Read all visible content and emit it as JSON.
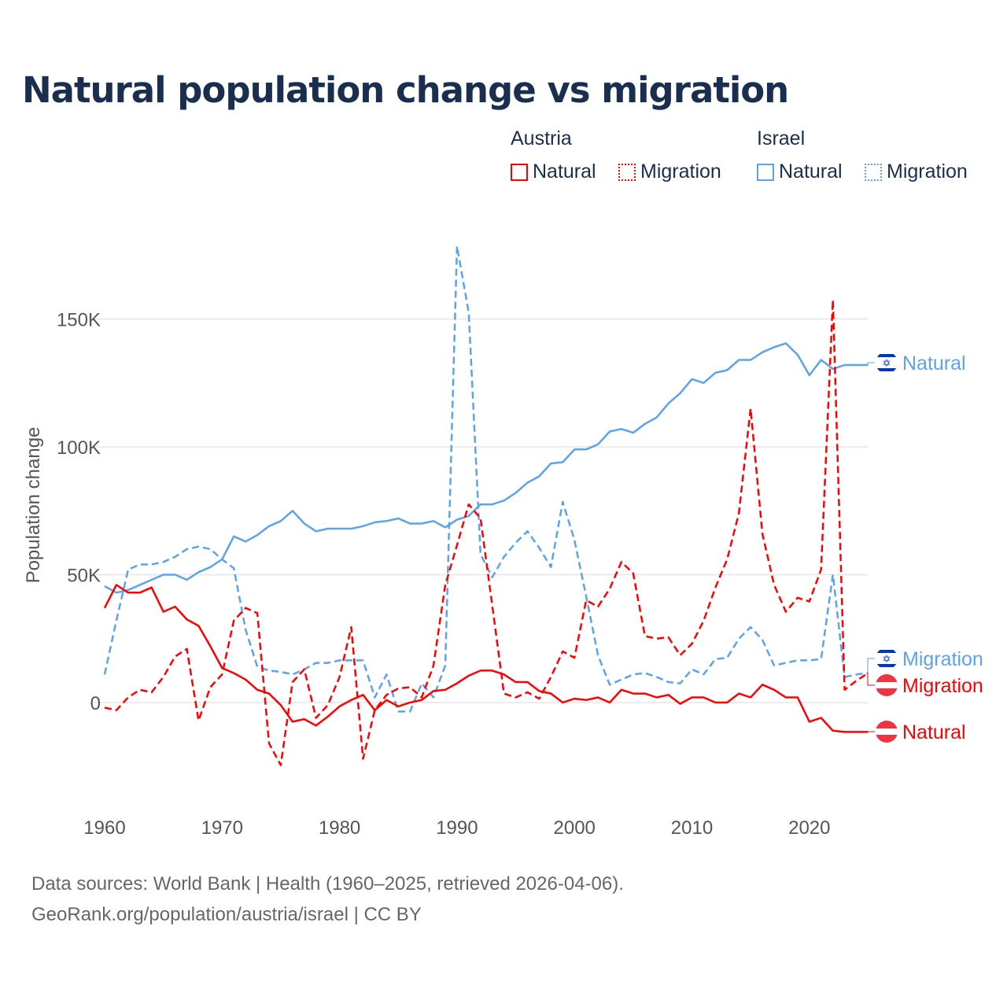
{
  "chart_data": {
    "type": "line",
    "title": "Natural population change vs migration",
    "xlabel": "",
    "ylabel": "Population change",
    "xlim": [
      1960,
      2025
    ],
    "ylim": [
      -30000,
      185000
    ],
    "x_ticks": [
      "1960",
      "1970",
      "1980",
      "1990",
      "2000",
      "2010",
      "2020"
    ],
    "y_ticks": [
      {
        "v": 0,
        "label": "0"
      },
      {
        "v": 50000,
        "label": "50K"
      },
      {
        "v": 100000,
        "label": "100K"
      },
      {
        "v": 150000,
        "label": "150K"
      }
    ],
    "grid": true,
    "legend": {
      "placement": "top-right",
      "groups": [
        {
          "name": "Austria",
          "items": [
            "Natural",
            "Migration"
          ]
        },
        {
          "name": "Israel",
          "items": [
            "Natural",
            "Migration"
          ]
        }
      ]
    },
    "colors": {
      "Austria": "#ff0000",
      "Israel": "#5ba3ec"
    },
    "start_year": 1960,
    "series": [
      {
        "country": "Israel",
        "name": "Natural",
        "style": "solid",
        "end_label": "Natural",
        "flag": "israel-flag",
        "values": [
          45500,
          43000,
          44000,
          46000,
          48000,
          50000,
          50000,
          48000,
          51000,
          53000,
          56000,
          65000,
          63000,
          65500,
          69000,
          71000,
          75000,
          70000,
          67000,
          68000,
          68000,
          68000,
          69000,
          70500,
          71000,
          72000,
          70000,
          70000,
          71000,
          68500,
          71500,
          73000,
          77500,
          77500,
          79000,
          82000,
          86000,
          88500,
          93500,
          94000,
          99000,
          99000,
          101000,
          106000,
          107000,
          105500,
          109000,
          111500,
          117000,
          121000,
          126500,
          125000,
          129000,
          130000,
          134000,
          134000,
          137000,
          139000,
          140500,
          136000,
          128000,
          134000,
          130500,
          132000,
          132000,
          132000
        ]
      },
      {
        "country": "Israel",
        "name": "Migration",
        "style": "dashed",
        "end_label": "Migration",
        "flag": "israel-flag",
        "values": [
          11000,
          32000,
          52000,
          54000,
          54000,
          55000,
          57000,
          60000,
          61000,
          60000,
          56000,
          52500,
          28500,
          14000,
          12500,
          12000,
          11000,
          13000,
          15500,
          15500,
          16500,
          16500,
          16500,
          2000,
          11000,
          -3500,
          -3500,
          7500,
          2000,
          14500,
          178500,
          152500,
          58000,
          49000,
          57000,
          62500,
          67000,
          60500,
          53000,
          78500,
          63500,
          41500,
          18500,
          7000,
          9000,
          11000,
          11500,
          10000,
          8000,
          7500,
          13000,
          11000,
          17000,
          17500,
          25000,
          29500,
          24500,
          14500,
          15500,
          16500,
          16500,
          17000,
          50000,
          10000,
          11000,
          11500
        ]
      },
      {
        "country": "Austria",
        "name": "Migration",
        "style": "dashed",
        "end_label": "Migration",
        "flag": "austria-flag",
        "values": [
          -2000,
          -3000,
          2000,
          5000,
          4000,
          10000,
          18000,
          21000,
          -7000,
          6000,
          11000,
          32000,
          37000,
          35000,
          -16000,
          -24500,
          8000,
          13000,
          -6000,
          -1000,
          10000,
          29500,
          -22000,
          -3000,
          3000,
          5500,
          6000,
          2000,
          14500,
          46000,
          61500,
          77500,
          72000,
          38000,
          3500,
          2000,
          4000,
          1500,
          10000,
          20000,
          17500,
          40000,
          37500,
          44500,
          55000,
          50500,
          26000,
          25000,
          25500,
          18500,
          23000,
          32000,
          45000,
          56000,
          74000,
          115000,
          66000,
          46000,
          35500,
          41000,
          39500,
          52000,
          157500,
          5000,
          8500,
          11500
        ]
      },
      {
        "country": "Austria",
        "name": "Natural",
        "style": "solid",
        "end_label": "Natural",
        "flag": "austria-flag",
        "values": [
          37000,
          46000,
          43000,
          43000,
          45000,
          35500,
          37500,
          32500,
          30000,
          22000,
          13500,
          11500,
          9000,
          5000,
          3500,
          -1000,
          -7500,
          -6500,
          -9000,
          -5500,
          -1500,
          1000,
          3000,
          -3000,
          1000,
          -1500,
          0,
          1000,
          4500,
          5000,
          7500,
          10500,
          12500,
          12500,
          11000,
          8000,
          8000,
          4500,
          3500,
          0,
          1500,
          1000,
          2000,
          0,
          5000,
          3500,
          3500,
          2000,
          3000,
          -500,
          2000,
          2000,
          0,
          0,
          3500,
          2000,
          7000,
          5000,
          2000,
          2000,
          -7500,
          -6000,
          -11000,
          -11500,
          -11500,
          -11500
        ]
      }
    ]
  },
  "footer": {
    "line1": "Data sources: World Bank | Health (1960–2025, retrieved 2026-04-06).",
    "line2": "GeoRank.org/population/austria/israel | CC BY"
  }
}
